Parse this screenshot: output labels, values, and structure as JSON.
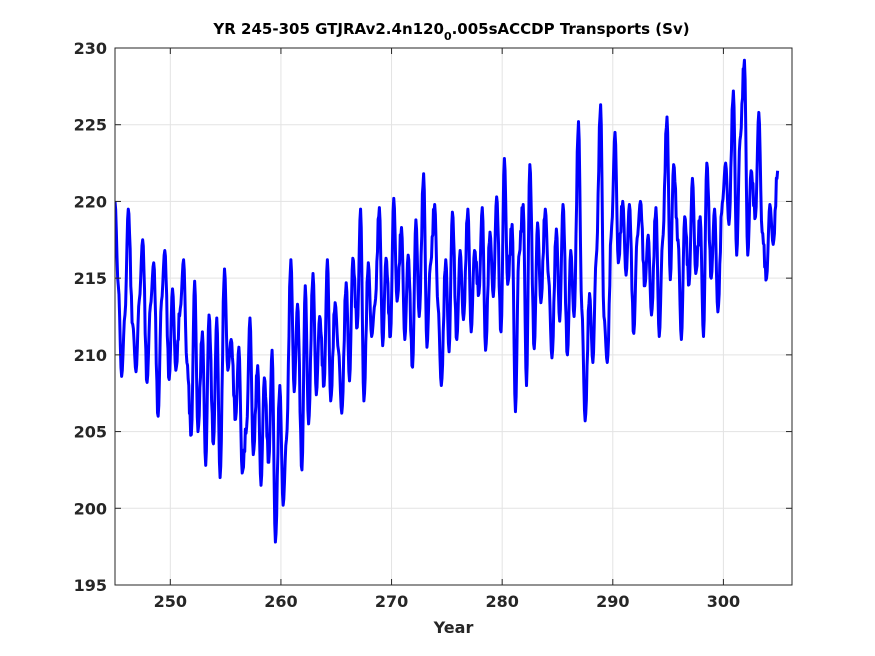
{
  "chart_data": {
    "type": "line",
    "title": {
      "prefix": "YR 245-305 GTJRAv2.4n120",
      "subscript": "0",
      "suffix": ".005sACCDP Transports (Sv)"
    },
    "xlabel": "Year",
    "ylabel": "",
    "xlim": [
      245,
      306.2
    ],
    "ylim": [
      195,
      230
    ],
    "xticks": [
      250,
      260,
      270,
      280,
      290,
      300
    ],
    "yticks": [
      195,
      200,
      205,
      210,
      215,
      220,
      225,
      230
    ],
    "grid": true,
    "legend": "none",
    "series": [
      {
        "color": "#0000ff",
        "anchors": [
          [
            245.0,
            220.0
          ],
          [
            245.3,
            214.5
          ],
          [
            245.6,
            208.6
          ],
          [
            245.9,
            212.6
          ],
          [
            246.2,
            219.5
          ],
          [
            246.6,
            212.0
          ],
          [
            246.9,
            208.9
          ],
          [
            247.2,
            213.6
          ],
          [
            247.5,
            217.5
          ],
          [
            247.9,
            208.2
          ],
          [
            248.2,
            213.2
          ],
          [
            248.5,
            216.0
          ],
          [
            248.9,
            206.0
          ],
          [
            249.2,
            213.5
          ],
          [
            249.5,
            216.8
          ],
          [
            249.9,
            208.4
          ],
          [
            250.2,
            214.3
          ],
          [
            250.5,
            209.0
          ],
          [
            250.9,
            213.0
          ],
          [
            251.2,
            216.2
          ],
          [
            251.5,
            209.5
          ],
          [
            251.9,
            204.8
          ],
          [
            252.2,
            214.8
          ],
          [
            252.5,
            205.0
          ],
          [
            252.9,
            211.5
          ],
          [
            253.2,
            202.8
          ],
          [
            253.5,
            212.6
          ],
          [
            253.9,
            204.2
          ],
          [
            254.2,
            212.4
          ],
          [
            254.5,
            202.0
          ],
          [
            254.9,
            215.6
          ],
          [
            255.2,
            209.0
          ],
          [
            255.5,
            211.0
          ],
          [
            255.9,
            205.8
          ],
          [
            256.2,
            210.5
          ],
          [
            256.5,
            202.3
          ],
          [
            256.9,
            205.3
          ],
          [
            257.2,
            212.4
          ],
          [
            257.5,
            203.5
          ],
          [
            257.9,
            209.3
          ],
          [
            258.2,
            201.5
          ],
          [
            258.5,
            208.5
          ],
          [
            258.9,
            203.0
          ],
          [
            259.2,
            210.3
          ],
          [
            259.5,
            197.8
          ],
          [
            259.9,
            208.0
          ],
          [
            260.2,
            200.2
          ],
          [
            260.5,
            204.5
          ],
          [
            260.9,
            216.2
          ],
          [
            261.2,
            207.6
          ],
          [
            261.5,
            213.3
          ],
          [
            261.9,
            202.5
          ],
          [
            262.2,
            214.5
          ],
          [
            262.5,
            205.5
          ],
          [
            262.9,
            215.3
          ],
          [
            263.2,
            207.4
          ],
          [
            263.5,
            212.5
          ],
          [
            263.9,
            208.0
          ],
          [
            264.2,
            216.2
          ],
          [
            264.5,
            207.0
          ],
          [
            264.9,
            213.4
          ],
          [
            265.2,
            210.3
          ],
          [
            265.5,
            206.2
          ],
          [
            265.9,
            214.7
          ],
          [
            266.2,
            208.3
          ],
          [
            266.5,
            216.3
          ],
          [
            266.9,
            211.8
          ],
          [
            267.2,
            219.5
          ],
          [
            267.5,
            207.0
          ],
          [
            267.9,
            216.0
          ],
          [
            268.2,
            211.2
          ],
          [
            268.5,
            213.3
          ],
          [
            268.9,
            219.6
          ],
          [
            269.2,
            210.6
          ],
          [
            269.5,
            216.3
          ],
          [
            269.9,
            211.2
          ],
          [
            270.2,
            220.2
          ],
          [
            270.5,
            213.5
          ],
          [
            270.9,
            218.3
          ],
          [
            271.2,
            211.0
          ],
          [
            271.5,
            216.5
          ],
          [
            271.9,
            209.2
          ],
          [
            272.2,
            218.8
          ],
          [
            272.5,
            212.5
          ],
          [
            272.9,
            221.8
          ],
          [
            273.2,
            210.5
          ],
          [
            273.5,
            215.8
          ],
          [
            273.9,
            219.8
          ],
          [
            274.2,
            213.2
          ],
          [
            274.5,
            208.0
          ],
          [
            274.9,
            216.2
          ],
          [
            275.2,
            210.2
          ],
          [
            275.5,
            219.3
          ],
          [
            275.9,
            211.0
          ],
          [
            276.2,
            216.8
          ],
          [
            276.5,
            212.3
          ],
          [
            276.9,
            219.5
          ],
          [
            277.2,
            211.5
          ],
          [
            277.5,
            216.8
          ],
          [
            277.9,
            214.0
          ],
          [
            278.2,
            219.6
          ],
          [
            278.5,
            210.3
          ],
          [
            278.9,
            218.0
          ],
          [
            279.2,
            213.8
          ],
          [
            279.5,
            220.3
          ],
          [
            279.9,
            211.5
          ],
          [
            280.2,
            222.8
          ],
          [
            280.5,
            214.6
          ],
          [
            280.9,
            218.5
          ],
          [
            281.2,
            206.3
          ],
          [
            281.5,
            216.4
          ],
          [
            281.9,
            219.8
          ],
          [
            282.2,
            208.0
          ],
          [
            282.5,
            222.4
          ],
          [
            282.9,
            210.4
          ],
          [
            283.2,
            218.6
          ],
          [
            283.5,
            213.4
          ],
          [
            283.9,
            219.5
          ],
          [
            284.2,
            215.0
          ],
          [
            284.5,
            209.8
          ],
          [
            284.9,
            218.2
          ],
          [
            285.2,
            212.2
          ],
          [
            285.5,
            219.8
          ],
          [
            285.9,
            210.0
          ],
          [
            286.2,
            216.8
          ],
          [
            286.5,
            212.5
          ],
          [
            286.9,
            225.2
          ],
          [
            287.2,
            213.0
          ],
          [
            287.5,
            205.7
          ],
          [
            287.9,
            214.0
          ],
          [
            288.2,
            209.5
          ],
          [
            288.5,
            216.3
          ],
          [
            288.9,
            226.3
          ],
          [
            289.2,
            212.5
          ],
          [
            289.5,
            209.5
          ],
          [
            289.9,
            218.4
          ],
          [
            290.2,
            224.5
          ],
          [
            290.5,
            216.0
          ],
          [
            290.9,
            220.0
          ],
          [
            291.2,
            215.2
          ],
          [
            291.5,
            219.8
          ],
          [
            291.9,
            211.4
          ],
          [
            292.2,
            217.6
          ],
          [
            292.5,
            220.0
          ],
          [
            292.9,
            214.5
          ],
          [
            293.2,
            217.8
          ],
          [
            293.5,
            212.6
          ],
          [
            293.9,
            219.6
          ],
          [
            294.2,
            211.2
          ],
          [
            294.5,
            217.4
          ],
          [
            294.9,
            225.5
          ],
          [
            295.2,
            214.9
          ],
          [
            295.5,
            222.4
          ],
          [
            295.9,
            217.5
          ],
          [
            296.2,
            211.0
          ],
          [
            296.5,
            219.0
          ],
          [
            296.9,
            214.6
          ],
          [
            297.2,
            221.5
          ],
          [
            297.5,
            215.3
          ],
          [
            297.9,
            219.0
          ],
          [
            298.2,
            211.2
          ],
          [
            298.5,
            222.5
          ],
          [
            298.9,
            215.0
          ],
          [
            299.2,
            219.5
          ],
          [
            299.5,
            212.8
          ],
          [
            299.9,
            219.9
          ],
          [
            300.2,
            222.5
          ],
          [
            300.5,
            218.5
          ],
          [
            300.9,
            227.2
          ],
          [
            301.2,
            216.5
          ],
          [
            301.5,
            224.0
          ],
          [
            301.9,
            229.2
          ],
          [
            302.2,
            216.5
          ],
          [
            302.5,
            222.0
          ],
          [
            302.9,
            219.0
          ],
          [
            303.2,
            225.8
          ],
          [
            303.5,
            218.0
          ],
          [
            303.9,
            215.0
          ],
          [
            304.2,
            219.8
          ],
          [
            304.5,
            217.2
          ],
          [
            304.9,
            222.0
          ]
        ],
        "oscillation_amplitude": 0.8,
        "oscillation_period_years": 0.12
      }
    ]
  }
}
